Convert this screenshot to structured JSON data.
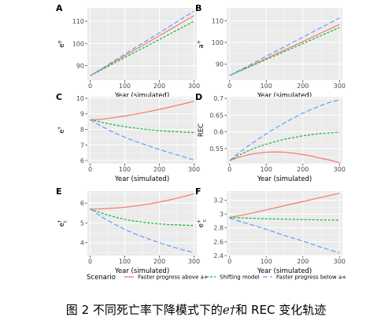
{
  "legend": {
    "title": "Scenario",
    "items": [
      {
        "key": "above",
        "label": "Faster progress above a+",
        "color": "#f8766d",
        "dash": ""
      },
      {
        "key": "shift",
        "label": "Shifting model",
        "color": "#00ba38",
        "dash": "3,2"
      },
      {
        "key": "below",
        "label": "Faster progress below a+",
        "color": "#619cff",
        "dash": "6,3"
      }
    ]
  },
  "caption": {
    "prefix": "图 2 不同死亡率下降模式下的",
    "symbol": "e†",
    "suffix": "和 REC 变化轨迹"
  },
  "chart_data": [
    {
      "panel": "A",
      "type": "line",
      "xlabel": "Year (simulated)",
      "ylabel": "e°",
      "ylabel_base": "e",
      "ylabel_sup": "o",
      "ylabel_sub": "",
      "xlim": [
        -8,
        308
      ],
      "ylim": [
        83.5,
        116
      ],
      "xticks": [
        0,
        100,
        200,
        300
      ],
      "yticks": [
        90,
        100,
        110
      ],
      "x": [
        0,
        50,
        100,
        150,
        200,
        250,
        300
      ],
      "series": [
        {
          "key": "above",
          "values": [
            85.5,
            90.0,
            94.5,
            99.0,
            103.5,
            108.0,
            112.5
          ]
        },
        {
          "key": "shift",
          "values": [
            85.5,
            89.6,
            93.7,
            97.7,
            101.8,
            105.9,
            110.0
          ]
        },
        {
          "key": "below",
          "values": [
            85.5,
            90.3,
            95.2,
            100.0,
            104.8,
            109.7,
            114.5
          ]
        }
      ]
    },
    {
      "panel": "B",
      "type": "line",
      "xlabel": "Year (simulated)",
      "ylabel": "a+",
      "ylabel_base": "a",
      "ylabel_sup": "+",
      "ylabel_sub": "",
      "xlim": [
        -8,
        308
      ],
      "ylim": [
        82.5,
        116
      ],
      "xticks": [
        0,
        100,
        200,
        300
      ],
      "yticks": [
        90,
        100,
        110
      ],
      "x": [
        0,
        50,
        100,
        150,
        200,
        250,
        300
      ],
      "series": [
        {
          "key": "above",
          "values": [
            84.7,
            88.6,
            92.6,
            96.5,
            100.4,
            104.4,
            108.3
          ]
        },
        {
          "key": "shift",
          "values": [
            84.7,
            88.4,
            92.1,
            95.8,
            99.5,
            103.2,
            106.9
          ]
        },
        {
          "key": "below",
          "values": [
            84.7,
            89.1,
            93.6,
            98.0,
            102.4,
            106.9,
            111.3
          ]
        }
      ]
    },
    {
      "panel": "C",
      "type": "line",
      "xlabel": "Year (simulated)",
      "ylabel": "e†",
      "ylabel_base": "e",
      "ylabel_sup": "†",
      "ylabel_sub": "",
      "xlim": [
        -8,
        308
      ],
      "ylim": [
        5.8,
        10.1
      ],
      "xticks": [
        0,
        100,
        200,
        300
      ],
      "yticks": [
        6,
        7,
        8,
        9,
        10
      ],
      "x": [
        0,
        25,
        50,
        75,
        100,
        125,
        150,
        175,
        200,
        225,
        250,
        275,
        300
      ],
      "series": [
        {
          "key": "above",
          "values": [
            8.62,
            8.64,
            8.7,
            8.78,
            8.86,
            8.96,
            9.06,
            9.17,
            9.29,
            9.41,
            9.54,
            9.67,
            9.82
          ]
        },
        {
          "key": "shift",
          "values": [
            8.62,
            8.5,
            8.38,
            8.27,
            8.18,
            8.1,
            8.03,
            7.97,
            7.92,
            7.88,
            7.85,
            7.82,
            7.8
          ]
        },
        {
          "key": "below",
          "values": [
            8.62,
            8.3,
            8.0,
            7.74,
            7.5,
            7.28,
            7.08,
            6.89,
            6.71,
            6.54,
            6.37,
            6.2,
            6.02
          ]
        }
      ]
    },
    {
      "panel": "D",
      "type": "line",
      "xlabel": "Year (simulated)",
      "ylabel": "REC",
      "ylabel_base": "REC",
      "ylabel_sup": "",
      "ylabel_sub": "",
      "xlim": [
        -8,
        308
      ],
      "ylim": [
        0.505,
        0.705
      ],
      "xticks": [
        0,
        100,
        200,
        300
      ],
      "yticks": [
        0.55,
        0.6,
        0.65,
        0.7
      ],
      "x": [
        0,
        25,
        50,
        75,
        100,
        125,
        150,
        175,
        200,
        225,
        250,
        275,
        300
      ],
      "series": [
        {
          "key": "above",
          "values": [
            0.514,
            0.524,
            0.531,
            0.536,
            0.539,
            0.54,
            0.539,
            0.536,
            0.532,
            0.527,
            0.521,
            0.515,
            0.508
          ]
        },
        {
          "key": "shift",
          "values": [
            0.514,
            0.53,
            0.543,
            0.554,
            0.563,
            0.571,
            0.578,
            0.583,
            0.588,
            0.592,
            0.595,
            0.597,
            0.599
          ]
        },
        {
          "key": "below",
          "values": [
            0.514,
            0.537,
            0.557,
            0.576,
            0.594,
            0.611,
            0.627,
            0.642,
            0.656,
            0.668,
            0.679,
            0.689,
            0.696
          ]
        }
      ]
    },
    {
      "panel": "E",
      "type": "line",
      "xlabel": "Year (simulated)",
      "ylabel": "e†c",
      "ylabel_base": "e",
      "ylabel_sup": "†",
      "ylabel_sub": "c",
      "xlim": [
        -8,
        308
      ],
      "ylim": [
        3.35,
        6.6
      ],
      "xticks": [
        0,
        100,
        200,
        300
      ],
      "yticks": [
        4,
        5,
        6
      ],
      "x": [
        0,
        25,
        50,
        75,
        100,
        125,
        150,
        175,
        200,
        225,
        250,
        275,
        300
      ],
      "series": [
        {
          "key": "above",
          "values": [
            5.7,
            5.7,
            5.72,
            5.75,
            5.79,
            5.84,
            5.9,
            5.97,
            6.05,
            6.14,
            6.24,
            6.35,
            6.47
          ]
        },
        {
          "key": "shift",
          "values": [
            5.7,
            5.54,
            5.4,
            5.28,
            5.18,
            5.1,
            5.04,
            4.99,
            4.95,
            4.92,
            4.9,
            4.88,
            4.87
          ]
        },
        {
          "key": "below",
          "values": [
            5.7,
            5.4,
            5.13,
            4.89,
            4.67,
            4.48,
            4.31,
            4.15,
            4.0,
            3.86,
            3.73,
            3.61,
            3.5
          ]
        }
      ]
    },
    {
      "panel": "F",
      "type": "line",
      "xlabel": "Year (simulated)",
      "ylabel": "e+c",
      "ylabel_base": "e",
      "ylabel_sup": "+",
      "ylabel_sub": "c",
      "xlim": [
        -8,
        308
      ],
      "ylim": [
        2.4,
        3.33
      ],
      "xticks": [
        0,
        100,
        200,
        300
      ],
      "yticks": [
        2.4,
        2.6,
        2.8,
        3.0,
        3.2
      ],
      "x": [
        0,
        50,
        100,
        150,
        200,
        250,
        300
      ],
      "series": [
        {
          "key": "above",
          "values": [
            2.95,
            3.0,
            3.06,
            3.12,
            3.18,
            3.24,
            3.3
          ]
        },
        {
          "key": "shift",
          "values": [
            2.95,
            2.94,
            2.93,
            2.925,
            2.92,
            2.915,
            2.91
          ]
        },
        {
          "key": "below",
          "values": [
            2.94,
            2.86,
            2.78,
            2.69,
            2.61,
            2.52,
            2.44
          ]
        }
      ]
    }
  ]
}
